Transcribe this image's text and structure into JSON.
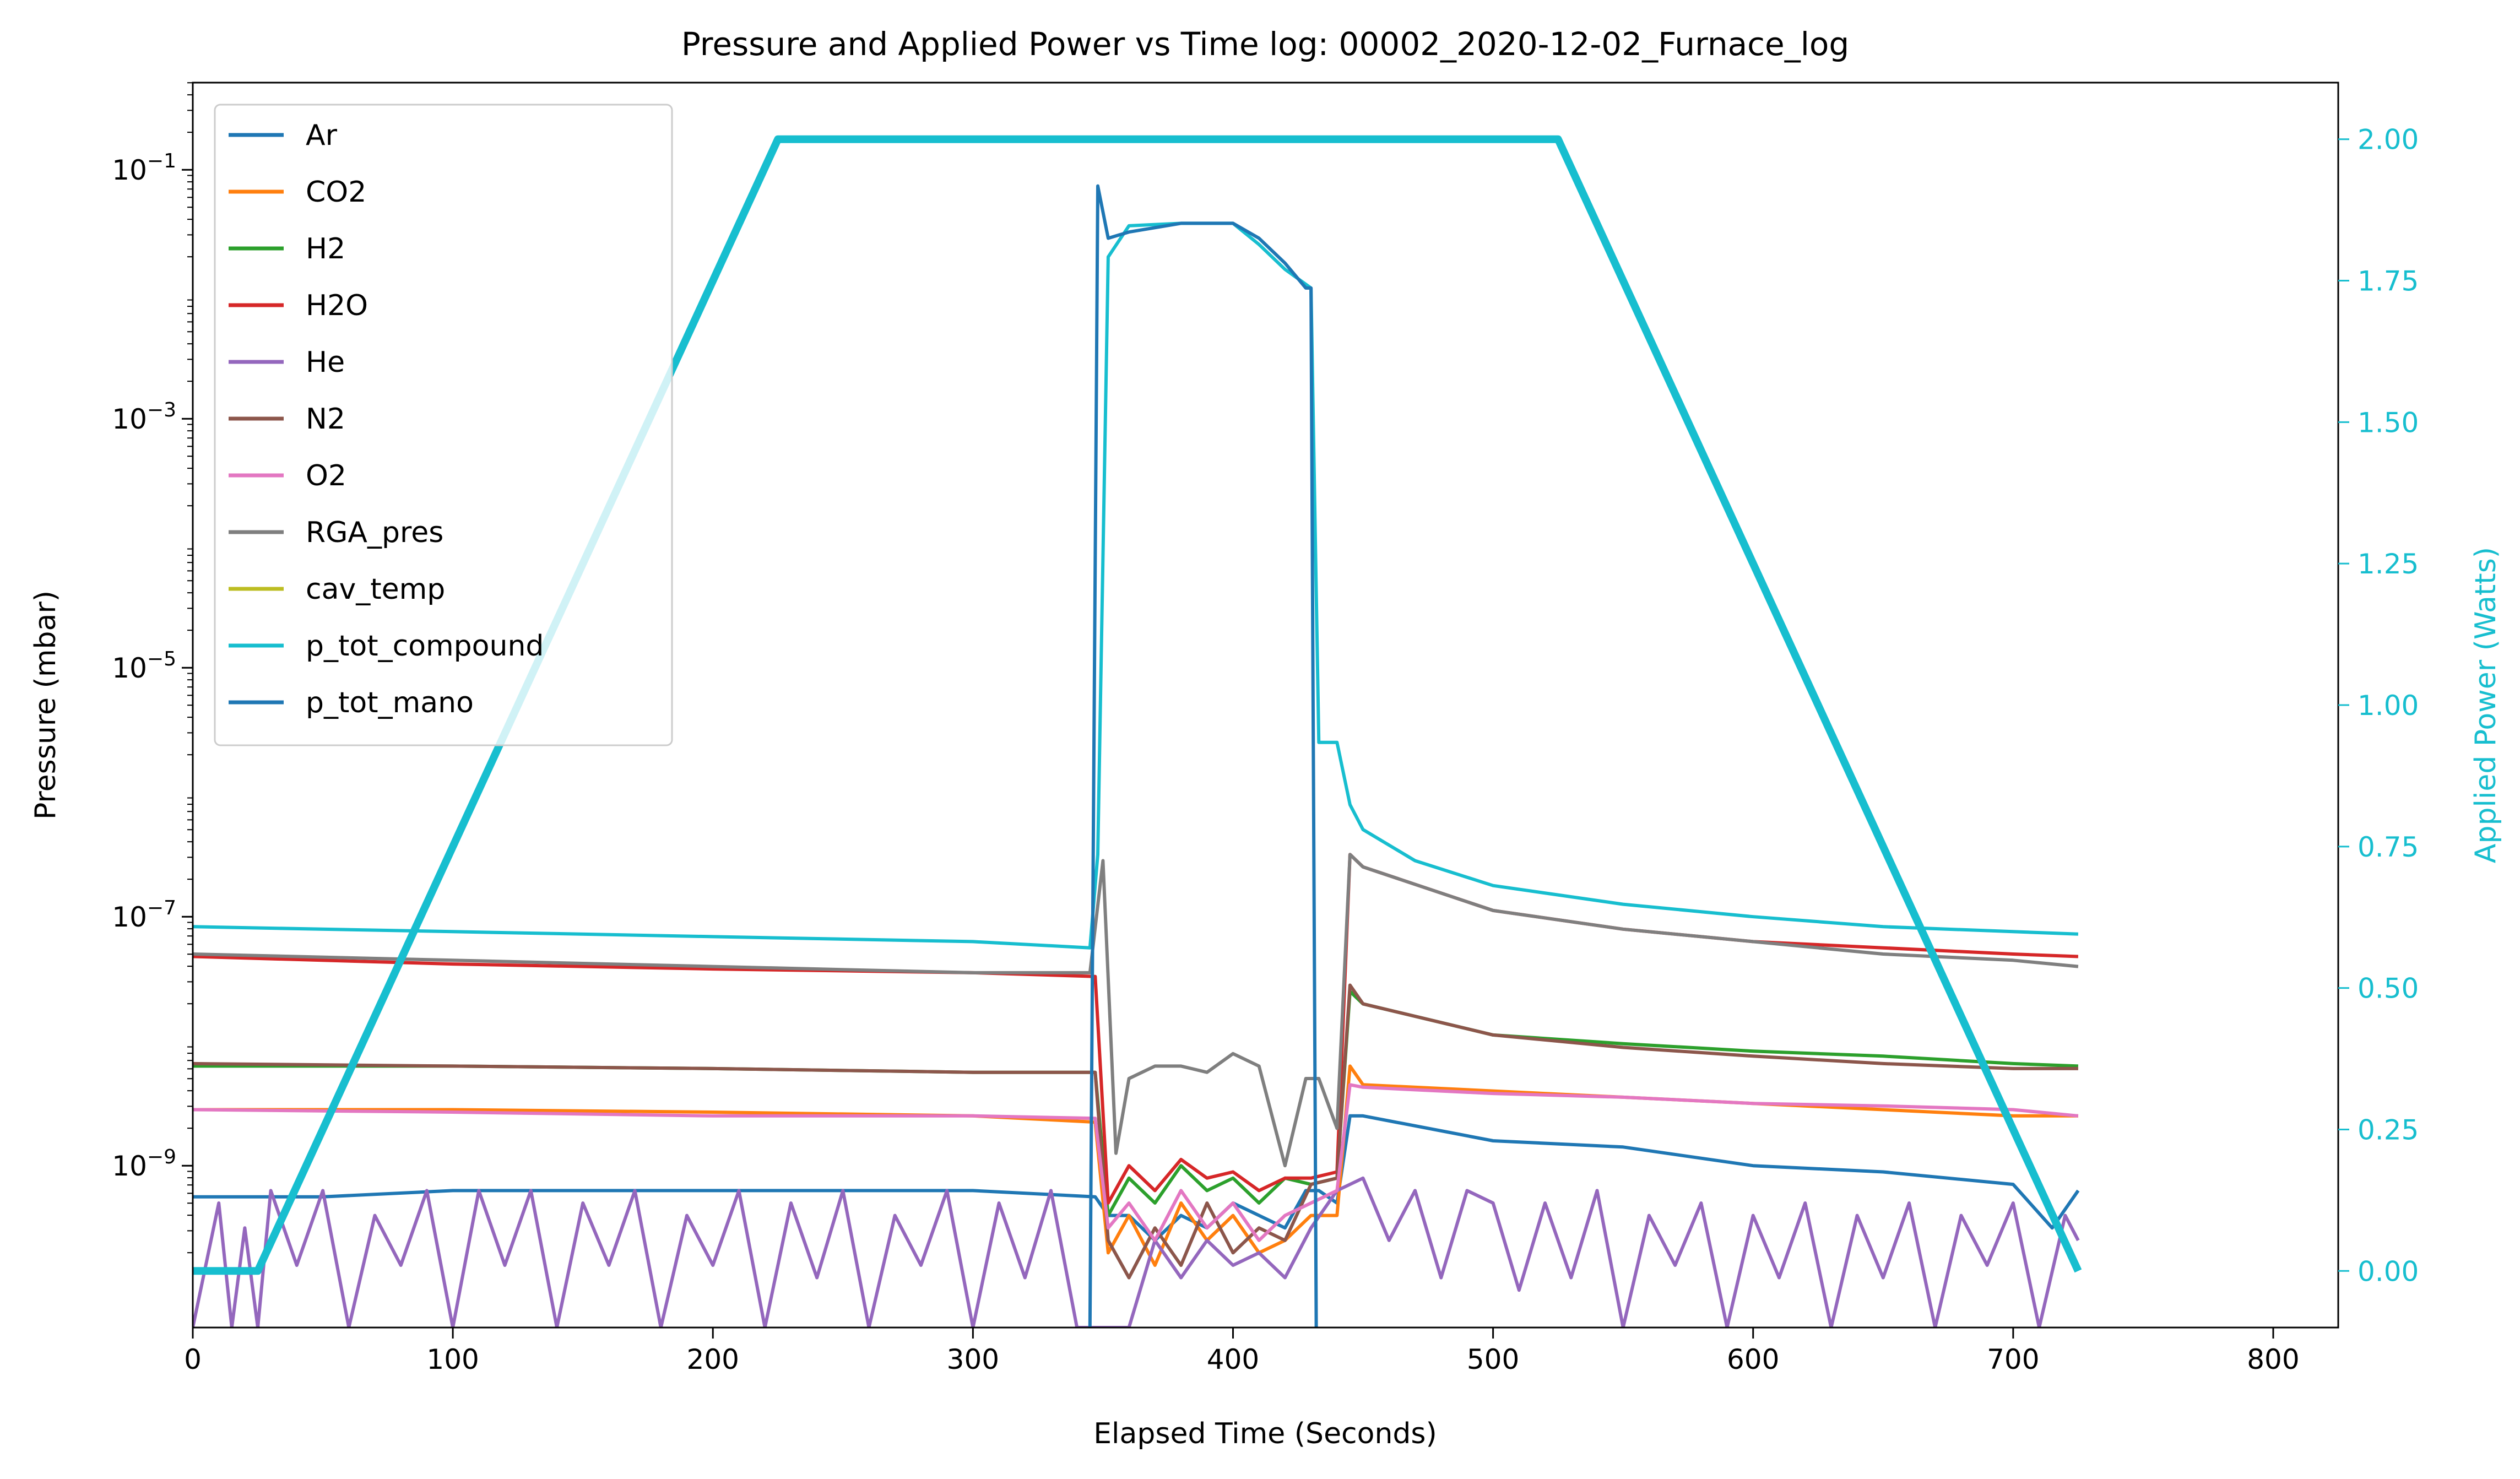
{
  "chart_data": {
    "type": "line",
    "title": "Pressure and Applied Power vs Time log: 00002_2020-12-02_Furnace_log",
    "xlabel": "Elapsed Time (Seconds)",
    "ylabel": "Pressure (mbar)",
    "y2label": "Applied Power (Watts)",
    "xlim": [
      0,
      825
    ],
    "ylim_log10": [
      -10.3,
      -0.3
    ],
    "y2lim": [
      -0.1,
      2.1
    ],
    "x_ticks": [
      "0",
      "100",
      "200",
      "300",
      "400",
      "500",
      "600",
      "700",
      "800"
    ],
    "y_ticks": [
      {
        "base": "10",
        "exp": "−1",
        "log10": -1
      },
      {
        "base": "10",
        "exp": "−3",
        "log10": -3
      },
      {
        "base": "10",
        "exp": "−5",
        "log10": -5
      },
      {
        "base": "10",
        "exp": "−7",
        "log10": -7
      },
      {
        "base": "10",
        "exp": "−9",
        "log10": -9
      }
    ],
    "y2_ticks": [
      "0.00",
      "0.25",
      "0.50",
      "0.75",
      "1.00",
      "1.25",
      "1.50",
      "1.75",
      "2.00"
    ],
    "y_scale": "log",
    "legend_position": "upper-left",
    "accent_color": "#17becf",
    "series": [
      {
        "name": "Ar",
        "color": "#1f77b4",
        "axis": "left",
        "x": [
          0,
          50,
          100,
          200,
          300,
          347,
          352,
          360,
          370,
          380,
          390,
          400,
          410,
          420,
          428,
          433,
          440,
          445,
          450,
          500,
          550,
          600,
          650,
          700,
          715,
          725
        ],
        "y_log10": [
          -9.25,
          -9.25,
          -9.2,
          -9.2,
          -9.2,
          -9.25,
          -9.4,
          -9.4,
          -9.6,
          -9.4,
          -9.5,
          -9.3,
          -9.4,
          -9.5,
          -9.2,
          -9.2,
          -9.3,
          -8.6,
          -8.6,
          -8.8,
          -8.85,
          -9.0,
          -9.05,
          -9.15,
          -9.5,
          -9.2
        ]
      },
      {
        "name": "CO2",
        "color": "#ff7f0e",
        "axis": "left",
        "x": [
          0,
          100,
          200,
          300,
          347,
          352,
          360,
          370,
          380,
          390,
          400,
          410,
          420,
          430,
          440,
          445,
          450,
          500,
          550,
          600,
          650,
          700,
          725
        ],
        "y_log10": [
          -8.55,
          -8.55,
          -8.57,
          -8.6,
          -8.65,
          -9.7,
          -9.4,
          -9.8,
          -9.3,
          -9.6,
          -9.4,
          -9.7,
          -9.6,
          -9.4,
          -9.4,
          -8.2,
          -8.35,
          -8.4,
          -8.45,
          -8.5,
          -8.55,
          -8.6,
          -8.6
        ]
      },
      {
        "name": "H2",
        "color": "#2ca02c",
        "axis": "left",
        "x": [
          0,
          100,
          200,
          300,
          347,
          352,
          360,
          370,
          380,
          390,
          400,
          410,
          420,
          430,
          440,
          445,
          450,
          500,
          550,
          600,
          650,
          700,
          725
        ],
        "y_log10": [
          -8.2,
          -8.2,
          -8.22,
          -8.25,
          -8.25,
          -9.4,
          -9.1,
          -9.3,
          -9.0,
          -9.2,
          -9.1,
          -9.3,
          -9.1,
          -9.15,
          -9.1,
          -7.6,
          -7.7,
          -7.95,
          -8.02,
          -8.08,
          -8.12,
          -8.18,
          -8.2
        ]
      },
      {
        "name": "H2O",
        "color": "#d62728",
        "axis": "left",
        "x": [
          0,
          100,
          200,
          300,
          347,
          352,
          360,
          370,
          380,
          390,
          400,
          410,
          420,
          430,
          440,
          445,
          450,
          500,
          550,
          600,
          650,
          700,
          725
        ],
        "y_log10": [
          -7.32,
          -7.38,
          -7.42,
          -7.45,
          -7.48,
          -9.3,
          -9.0,
          -9.2,
          -8.95,
          -9.1,
          -9.05,
          -9.2,
          -9.1,
          -9.1,
          -9.05,
          -6.5,
          -6.6,
          -6.95,
          -7.1,
          -7.2,
          -7.25,
          -7.3,
          -7.32
        ]
      },
      {
        "name": "He",
        "color": "#9467bd",
        "axis": "left",
        "x": [
          0,
          10,
          15,
          20,
          25,
          30,
          40,
          50,
          60,
          70,
          80,
          90,
          100,
          110,
          120,
          130,
          140,
          150,
          160,
          170,
          180,
          190,
          200,
          210,
          220,
          230,
          240,
          250,
          260,
          270,
          280,
          290,
          300,
          310,
          320,
          330,
          340,
          350,
          360,
          370,
          380,
          390,
          400,
          410,
          420,
          430,
          440,
          450,
          460,
          470,
          480,
          490,
          500,
          510,
          520,
          530,
          540,
          550,
          560,
          570,
          580,
          590,
          600,
          610,
          620,
          630,
          640,
          650,
          660,
          670,
          680,
          690,
          700,
          710,
          720,
          725
        ],
        "y_log10": [
          -10.3,
          -9.3,
          -10.3,
          -9.5,
          -10.3,
          -9.2,
          -9.8,
          -9.2,
          -10.3,
          -9.4,
          -9.8,
          -9.2,
          -10.3,
          -9.2,
          -9.8,
          -9.2,
          -10.3,
          -9.3,
          -9.8,
          -9.2,
          -10.3,
          -9.4,
          -9.8,
          -9.2,
          -10.3,
          -9.3,
          -9.9,
          -9.2,
          -10.3,
          -9.4,
          -9.8,
          -9.2,
          -10.3,
          -9.3,
          -9.9,
          -9.2,
          -10.3,
          -10.3,
          -10.3,
          -9.6,
          -9.9,
          -9.6,
          -9.8,
          -9.7,
          -9.9,
          -9.5,
          -9.2,
          -9.1,
          -9.6,
          -9.2,
          -9.9,
          -9.2,
          -9.3,
          -10.0,
          -9.3,
          -9.9,
          -9.2,
          -10.3,
          -9.4,
          -9.8,
          -9.3,
          -10.3,
          -9.4,
          -9.9,
          -9.3,
          -10.3,
          -9.4,
          -9.9,
          -9.3,
          -10.3,
          -9.4,
          -9.8,
          -9.3,
          -10.3,
          -9.4,
          -9.6
        ]
      },
      {
        "name": "N2",
        "color": "#8c564b",
        "axis": "left",
        "x": [
          0,
          100,
          200,
          300,
          347,
          352,
          360,
          370,
          380,
          390,
          400,
          410,
          420,
          430,
          440,
          445,
          450,
          500,
          550,
          600,
          650,
          700,
          725
        ],
        "y_log10": [
          -8.18,
          -8.2,
          -8.22,
          -8.25,
          -8.25,
          -9.6,
          -9.9,
          -9.5,
          -9.8,
          -9.3,
          -9.7,
          -9.5,
          -9.6,
          -9.15,
          -9.1,
          -7.55,
          -7.7,
          -7.95,
          -8.05,
          -8.12,
          -8.18,
          -8.22,
          -8.22
        ]
      },
      {
        "name": "O2",
        "color": "#e377c2",
        "axis": "left",
        "x": [
          0,
          100,
          200,
          300,
          347,
          352,
          360,
          370,
          380,
          390,
          400,
          410,
          420,
          430,
          440,
          445,
          450,
          500,
          550,
          600,
          650,
          700,
          725
        ],
        "y_log10": [
          -8.55,
          -8.57,
          -8.6,
          -8.6,
          -8.62,
          -9.5,
          -9.3,
          -9.6,
          -9.2,
          -9.5,
          -9.3,
          -9.6,
          -9.4,
          -9.3,
          -9.2,
          -8.35,
          -8.37,
          -8.42,
          -8.45,
          -8.5,
          -8.52,
          -8.55,
          -8.6
        ]
      },
      {
        "name": "RGA_pres",
        "color": "#7f7f7f",
        "axis": "left",
        "x": [
          0,
          100,
          200,
          300,
          345,
          350,
          355,
          360,
          370,
          380,
          390,
          400,
          410,
          420,
          428,
          433,
          440,
          445,
          450,
          500,
          550,
          600,
          650,
          700,
          725
        ],
        "y_log10": [
          -7.3,
          -7.35,
          -7.4,
          -7.45,
          -7.45,
          -6.55,
          -8.9,
          -8.3,
          -8.2,
          -8.2,
          -8.25,
          -8.1,
          -8.2,
          -9.0,
          -8.3,
          -8.3,
          -8.7,
          -6.5,
          -6.6,
          -6.95,
          -7.1,
          -7.2,
          -7.3,
          -7.35,
          -7.4
        ]
      },
      {
        "name": "cav_temp",
        "color": "#bcbd22",
        "axis": "left",
        "x": [],
        "y_log10": []
      },
      {
        "name": "p_tot_compound",
        "color": "#17becf",
        "axis": "left",
        "x": [
          0,
          100,
          200,
          300,
          345,
          348,
          352,
          360,
          380,
          400,
          410,
          420,
          430,
          433,
          440,
          445,
          450,
          470,
          500,
          550,
          600,
          650,
          700,
          725
        ],
        "y_log10": [
          -7.08,
          -7.12,
          -7.16,
          -7.2,
          -7.25,
          -6.5,
          -1.7,
          -1.45,
          -1.43,
          -1.43,
          -1.6,
          -1.8,
          -1.95,
          -5.6,
          -5.6,
          -6.1,
          -6.3,
          -6.55,
          -6.75,
          -6.9,
          -7.0,
          -7.08,
          -7.12,
          -7.14
        ]
      },
      {
        "name": "p_tot_mano",
        "color": "#1f77b4",
        "axis": "left",
        "x": [
          345,
          348,
          352,
          360,
          380,
          400,
          410,
          420,
          428,
          430,
          432
        ],
        "y_log10": [
          -10.3,
          -1.13,
          -1.55,
          -1.5,
          -1.43,
          -1.43,
          -1.55,
          -1.75,
          -1.95,
          -1.95,
          -10.3
        ]
      },
      {
        "name": "Applied Power",
        "color": "#17becf",
        "axis": "right",
        "x": [
          0,
          25,
          225,
          525,
          725
        ],
        "y": [
          0.0,
          0.0,
          2.0,
          2.0,
          0.0
        ]
      }
    ]
  }
}
